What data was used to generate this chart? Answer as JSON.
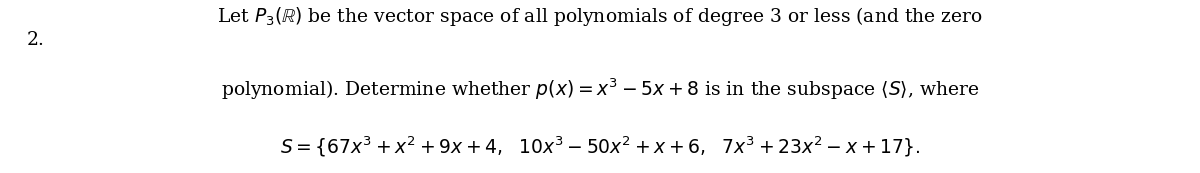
{
  "number": "2.",
  "line1": "Let $P_3(\\mathbb{R})$ be the vector space of all polynomials of degree 3 or less (and the zero",
  "line2": "polynomial). Determine whether $p(x) = x^3 - 5x + 8$ is in the subspace $\\langle S \\rangle$, where",
  "line3": "$S = \\{67x^3 + x^2 + 9x + 4, \\ \\ 10x^3 - 50x^2 + x + 6, \\ \\ 7x^3 + 23x^2 - x + 17\\}.$",
  "bg_color": "#ffffff",
  "text_color": "#000000",
  "font_size": 13.5
}
